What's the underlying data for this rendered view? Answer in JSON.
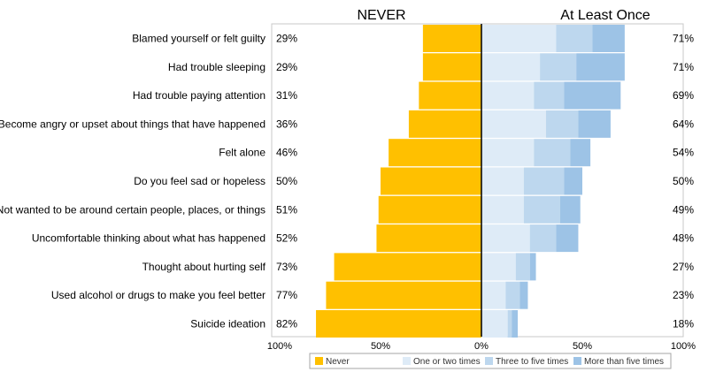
{
  "chart_data": {
    "type": "bar",
    "headers": {
      "left": "NEVER",
      "right": "At Least Once"
    },
    "categories": [
      "Blamed yourself or felt guilty",
      "Had trouble sleeping",
      "Had trouble paying attention",
      "Become angry or upset about things that have happened",
      "Felt alone",
      "Do you feel sad or hopeless",
      "Not wanted to be around certain people, places, or things",
      "Uncomfortable thinking about what has happened",
      "Thought about hurting self",
      "Used alcohol or drugs to make you feel better",
      "Suicide ideation"
    ],
    "never_labels": [
      "29%",
      "29%",
      "31%",
      "36%",
      "46%",
      "50%",
      "51%",
      "52%",
      "73%",
      "77%",
      "82%"
    ],
    "atleast_labels": [
      "71%",
      "71%",
      "69%",
      "64%",
      "54%",
      "50%",
      "49%",
      "48%",
      "27%",
      "23%",
      "18%"
    ],
    "series": [
      {
        "name": "Never",
        "color": "#FFC000",
        "values": [
          29,
          29,
          31,
          36,
          46,
          50,
          51,
          52,
          73,
          77,
          82
        ]
      },
      {
        "name": "One or two times",
        "color": "#DEEBF7",
        "values": [
          37,
          29,
          26,
          32,
          26,
          21,
          21,
          24,
          17,
          12,
          13
        ]
      },
      {
        "name": "Three to five times",
        "color": "#BDD7EE",
        "values": [
          18,
          18,
          15,
          16,
          18,
          20,
          18,
          13,
          7,
          7,
          2
        ]
      },
      {
        "name": "More than five times",
        "color": "#9DC3E6",
        "values": [
          16,
          24,
          28,
          16,
          10,
          9,
          10,
          11,
          3,
          4,
          3
        ]
      }
    ],
    "x_ticks": [
      "100%",
      "50%",
      "0%",
      "50%",
      "100%"
    ],
    "xlim": [
      -100,
      100
    ],
    "grid": false,
    "legend_position": "bottom"
  }
}
